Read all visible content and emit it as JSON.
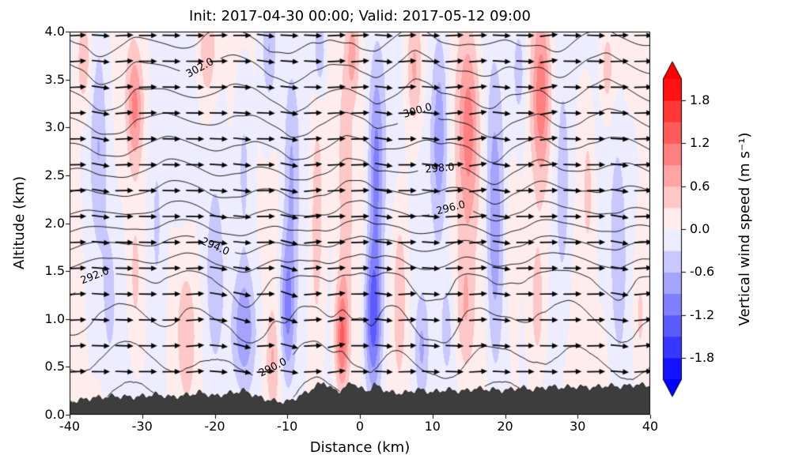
{
  "chart_data": {
    "type": "heatmap",
    "subtype": "vertical-cross-section-with-quiver-and-contours",
    "title": "Init: 2017-04-30 00:00; Valid: 2017-05-12 09:00",
    "xlabel": "Distance (km)",
    "ylabel": "Altitude (km)",
    "xlim": [
      -40,
      40
    ],
    "ylim": [
      0.0,
      4.0
    ],
    "x_ticks": [
      -40,
      -30,
      -20,
      -10,
      0,
      10,
      20,
      30,
      40
    ],
    "y_ticks": [
      0.0,
      0.5,
      1.0,
      1.5,
      2.0,
      2.5,
      3.0,
      3.5,
      4.0
    ],
    "grid": false,
    "colorbar": {
      "label": "Vertical wind speed (m s⁻¹)",
      "ticks": [
        1.8,
        1.2,
        0.6,
        0.0,
        -0.6,
        -1.2,
        -1.8
      ],
      "vmin": -2.1,
      "vmax": 2.1,
      "level_step": 0.3,
      "colormap": "bwr",
      "extend": "both",
      "color_positive": "#ff0000",
      "color_negative": "#0000ff"
    },
    "theta_contours": {
      "units": "K",
      "level_min": 289,
      "level_max": 303,
      "interval": 1.0,
      "profile": [
        [
          0,
          288.8
        ],
        [
          0.52,
          290
        ],
        [
          1.42,
          292
        ],
        [
          1.78,
          294
        ],
        [
          2.12,
          296
        ],
        [
          2.55,
          298
        ],
        [
          3.05,
          300
        ],
        [
          3.62,
          302
        ],
        [
          4.0,
          303.4
        ]
      ],
      "labels": [
        {
          "level": 290,
          "label": "290.0",
          "x": -12
        },
        {
          "level": 292,
          "label": "292.0",
          "x": -36.5
        },
        {
          "level": 294,
          "label": "294.0",
          "x": -20
        },
        {
          "level": 296,
          "label": "296.0",
          "x": 12.5
        },
        {
          "level": 298,
          "label": "298.0",
          "x": 11
        },
        {
          "level": 300,
          "label": "300.0",
          "x": 8
        },
        {
          "level": 302,
          "label": "302.0",
          "x": -22
        }
      ]
    },
    "wind": {
      "mean_flow": "west-to-east",
      "quiver": {
        "x0": -39,
        "x1": 39,
        "dx": 3.25,
        "z0": 0.45,
        "z1": 3.96,
        "dz": 0.27,
        "color": "#000000"
      },
      "bands": [
        {
          "x": -38,
          "sx": 1.0,
          "a": 0.6,
          "z": 3.7,
          "sz": 0.5
        },
        {
          "x": -36,
          "sx": 1.1,
          "a": -0.45,
          "z": 2.8,
          "sz": 1.0
        },
        {
          "x": -34.5,
          "sx": 1.0,
          "a": -0.4,
          "z": 1.2,
          "sz": 0.8
        },
        {
          "x": -31,
          "sx": 1.1,
          "a": 0.95,
          "z": 3.2,
          "sz": 0.6
        },
        {
          "x": -31,
          "sx": 1.0,
          "a": 0.45,
          "z": 1.4,
          "sz": 0.9
        },
        {
          "x": -28,
          "sx": 1.2,
          "a": -0.5,
          "z": 2.0,
          "sz": 1.4
        },
        {
          "x": -24,
          "sx": 1.4,
          "a": 0.45,
          "z": 0.9,
          "sz": 0.7
        },
        {
          "x": -21,
          "sx": 1.1,
          "a": 0.55,
          "z": 3.8,
          "sz": 0.5
        },
        {
          "x": -20,
          "sx": 1.2,
          "a": -0.4,
          "z": 1.5,
          "sz": 0.9
        },
        {
          "x": -16,
          "sx": 1.6,
          "a": -0.85,
          "z": 0.9,
          "sz": 0.6
        },
        {
          "x": -16,
          "sx": 1.2,
          "a": -0.5,
          "z": 2.6,
          "sz": 1.1
        },
        {
          "x": -12.5,
          "sx": 0.9,
          "a": -0.5,
          "z": 3.8,
          "sz": 0.5
        },
        {
          "x": -12,
          "sx": 0.9,
          "a": 0.5,
          "z": 0.6,
          "sz": 0.5
        },
        {
          "x": -10,
          "sx": 1.1,
          "a": -1.05,
          "z": 1.1,
          "sz": 0.8
        },
        {
          "x": -9.5,
          "sx": 1.0,
          "a": -0.55,
          "z": 2.6,
          "sz": 1.0
        },
        {
          "x": -6,
          "sx": 1.0,
          "a": 0.5,
          "z": 2.0,
          "sz": 1.4
        },
        {
          "x": -5.5,
          "sx": 0.9,
          "a": -0.65,
          "z": 3.8,
          "sz": 0.5
        },
        {
          "x": -2.5,
          "sx": 1.0,
          "a": 1.3,
          "z": 0.8,
          "sz": 0.6
        },
        {
          "x": -2,
          "sx": 1.0,
          "a": 0.55,
          "z": 2.4,
          "sz": 1.2
        },
        {
          "x": -1,
          "sx": 0.9,
          "a": 0.7,
          "z": 3.8,
          "sz": 0.5
        },
        {
          "x": 1.8,
          "sx": 1.2,
          "a": -1.4,
          "z": 1.0,
          "sz": 0.8
        },
        {
          "x": 2.2,
          "sx": 1.1,
          "a": -1.0,
          "z": 2.6,
          "sz": 1.1
        },
        {
          "x": 5.5,
          "sx": 1.0,
          "a": 0.5,
          "z": 1.3,
          "sz": 0.9
        },
        {
          "x": 7.5,
          "sx": 1.0,
          "a": 0.6,
          "z": 3.6,
          "sz": 0.6
        },
        {
          "x": 8.5,
          "sx": 0.9,
          "a": -0.5,
          "z": 0.7,
          "sz": 0.5
        },
        {
          "x": 11,
          "sx": 1.2,
          "a": -0.9,
          "z": 2.9,
          "sz": 1.1
        },
        {
          "x": 12,
          "sx": 1.0,
          "a": -0.45,
          "z": 0.9,
          "sz": 0.6
        },
        {
          "x": 14.5,
          "sx": 1.2,
          "a": 0.55,
          "z": 1.1,
          "sz": 0.7
        },
        {
          "x": 15,
          "sx": 1.5,
          "a": 1.1,
          "z": 3.0,
          "sz": 1.1
        },
        {
          "x": 18.5,
          "sx": 1.2,
          "a": -0.8,
          "z": 2.0,
          "sz": 1.6
        },
        {
          "x": 21,
          "sx": 1.0,
          "a": 0.4,
          "z": 1.8,
          "sz": 1.0
        },
        {
          "x": 22,
          "sx": 1.0,
          "a": -0.4,
          "z": 3.6,
          "sz": 0.6
        },
        {
          "x": 24.5,
          "sx": 1.1,
          "a": 0.5,
          "z": 1.1,
          "sz": 0.8
        },
        {
          "x": 25,
          "sx": 1.3,
          "a": 1.0,
          "z": 3.3,
          "sz": 0.9
        },
        {
          "x": 28,
          "sx": 1.3,
          "a": -0.55,
          "z": 2.3,
          "sz": 1.4
        },
        {
          "x": 31.5,
          "sx": 1.0,
          "a": 0.45,
          "z": 2.4,
          "sz": 1.0
        },
        {
          "x": 34,
          "sx": 1.0,
          "a": 0.5,
          "z": 3.6,
          "sz": 0.5
        },
        {
          "x": 35.5,
          "sx": 1.1,
          "a": -0.5,
          "z": 1.8,
          "sz": 1.2
        },
        {
          "x": 38.5,
          "sx": 1.0,
          "a": 0.4,
          "z": 1.0,
          "sz": 0.8
        }
      ]
    },
    "terrain": {
      "color": "#3d3d3d",
      "profile": [
        [
          -40,
          0.13
        ],
        [
          -37,
          0.17
        ],
        [
          -34,
          0.19
        ],
        [
          -31,
          0.18
        ],
        [
          -28,
          0.21
        ],
        [
          -26,
          0.18
        ],
        [
          -24,
          0.2
        ],
        [
          -22,
          0.23
        ],
        [
          -20,
          0.19
        ],
        [
          -18,
          0.22
        ],
        [
          -16,
          0.25
        ],
        [
          -14,
          0.18
        ],
        [
          -12,
          0.14
        ],
        [
          -10,
          0.13
        ],
        [
          -8,
          0.2
        ],
        [
          -6.5,
          0.27
        ],
        [
          -5,
          0.34
        ],
        [
          -4,
          0.27
        ],
        [
          -3,
          0.24
        ],
        [
          -2,
          0.28
        ],
        [
          -1,
          0.34
        ],
        [
          0,
          0.27
        ],
        [
          1,
          0.24
        ],
        [
          2,
          0.31
        ],
        [
          3,
          0.27
        ],
        [
          4,
          0.23
        ],
        [
          6,
          0.22
        ],
        [
          8,
          0.26
        ],
        [
          10,
          0.23
        ],
        [
          12,
          0.26
        ],
        [
          14,
          0.24
        ],
        [
          16,
          0.27
        ],
        [
          18,
          0.26
        ],
        [
          20,
          0.25
        ],
        [
          22,
          0.28
        ],
        [
          24,
          0.26
        ],
        [
          26,
          0.29
        ],
        [
          28,
          0.28
        ],
        [
          30,
          0.29
        ],
        [
          32,
          0.28
        ],
        [
          34,
          0.3
        ],
        [
          36,
          0.29
        ],
        [
          38,
          0.31
        ],
        [
          40,
          0.3
        ]
      ]
    }
  }
}
